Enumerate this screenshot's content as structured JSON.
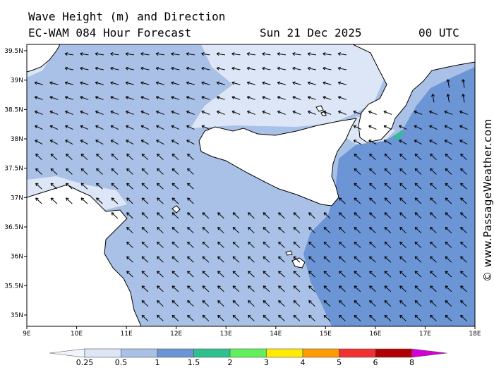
{
  "title_line1": "Wave Height (m) and Direction",
  "title_line2": "EC-WAM 084 Hour Forecast",
  "forecast_date": "Sun 21 Dec 2025",
  "forecast_time": "00 UTC",
  "credit": "© www.PassageWeather.com",
  "map": {
    "lon_ticks": [
      "9E",
      "10E",
      "11E",
      "12E",
      "13E",
      "14E",
      "15E",
      "16E",
      "17E",
      "18E"
    ],
    "lat_ticks": [
      "39.5N",
      "39N",
      "38.5N",
      "38N",
      "37.5N",
      "37N",
      "36.5N",
      "36N",
      "35.5N",
      "35N"
    ],
    "arrow_direction": "NW"
  },
  "colorbar": {
    "labels": [
      "0.25",
      "0.5",
      "1",
      "1.5",
      "2",
      "3",
      "4",
      "5",
      "6",
      "8"
    ],
    "colors": [
      "#f0f4fc",
      "#dde6f6",
      "#a9c1e6",
      "#6b95d5",
      "#2fc08f",
      "#5ff05a",
      "#ffeb00",
      "#ff9c00",
      "#f23030",
      "#b00000",
      "#d400d4"
    ]
  },
  "colors": {
    "land": "#ffffff",
    "sea_low": "#dde6f6",
    "sea_mid": "#a9c1e6",
    "sea_high": "#6b95d5",
    "coast": "#000000"
  }
}
